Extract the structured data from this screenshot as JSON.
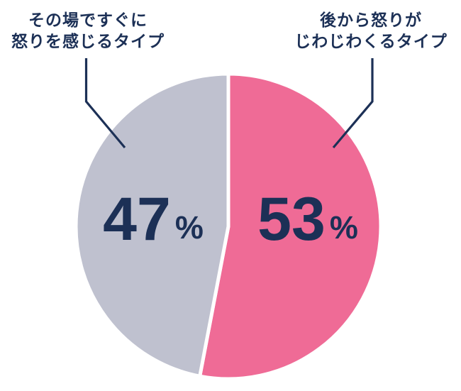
{
  "chart_data": {
    "type": "pie",
    "title": "",
    "slices": [
      {
        "label": "後から怒りがじわじわくるタイプ",
        "value": 53,
        "color": "#EF6B96",
        "value_text": "53",
        "side": "right"
      },
      {
        "label": "その場ですぐに怒りを感じるタイプ",
        "value": 47,
        "color": "#BFC1CF",
        "value_text": "47",
        "side": "left"
      }
    ],
    "unit": "%",
    "start_angle_deg": 0,
    "direction": "clockwise",
    "divider_color": "#FFFFFF",
    "legend_position": "callouts-top"
  },
  "annotations": {
    "left_label": {
      "line1": "その場ですぐに",
      "line2": "怒りを感じるタイプ"
    },
    "right_label": {
      "line1": "後から怒りが",
      "line2": "じわじわくるタイプ"
    }
  },
  "values": {
    "left_value": "47",
    "right_value": "53",
    "unit": "%"
  },
  "colors": {
    "pink_slice": "#EF6B96",
    "gray_slice": "#BFC1CF",
    "text_navy": "#1C3056",
    "divider": "#FFFFFF",
    "background": "#FFFFFF"
  }
}
